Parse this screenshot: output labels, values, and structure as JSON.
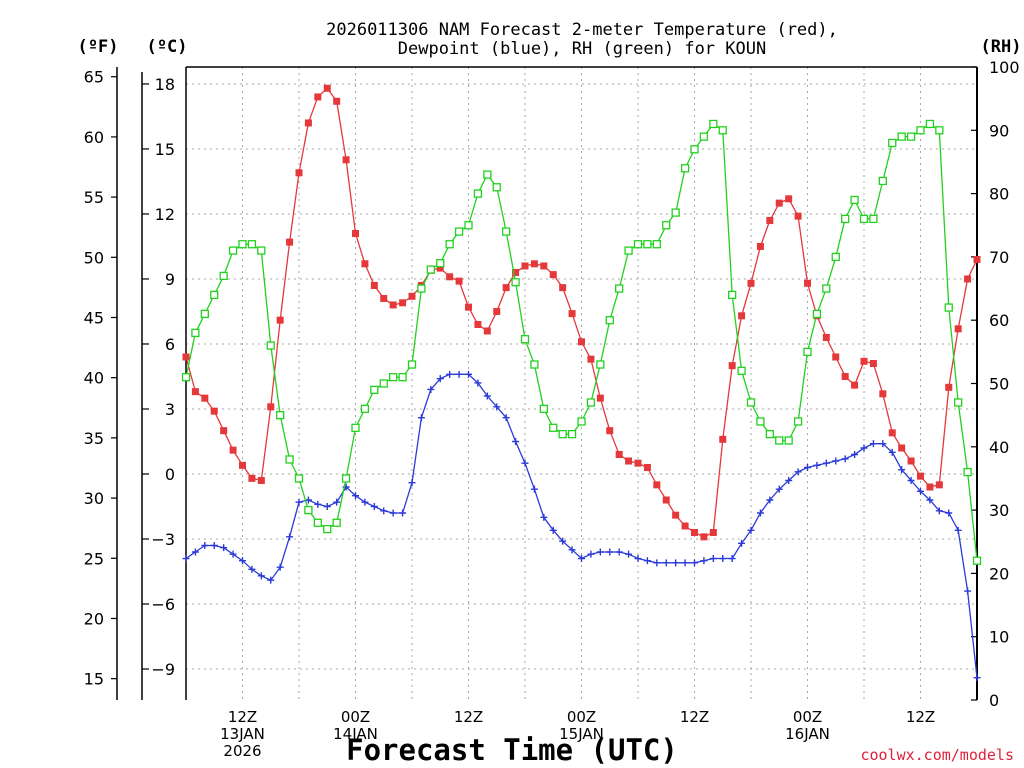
{
  "chart_data": {
    "type": "line",
    "title": [
      "2026011306 NAM Forecast 2-meter Temperature (red),",
      "Dewpoint (blue), RH (green) for KOUN"
    ],
    "xlabel": "Forecast Time (UTC)",
    "y_units": {
      "fahrenheit": "(ºF)",
      "celsius": "(ºC)",
      "rh": "(RH)"
    },
    "y_celsius": {
      "ticks": [
        18,
        15,
        12,
        9,
        6,
        3,
        0,
        -3,
        -6,
        -9
      ],
      "range": [
        -10.3,
        18.8
      ]
    },
    "y_fahrenheit": {
      "ticks": [
        65,
        60,
        55,
        50,
        45,
        40,
        35,
        30,
        25,
        20,
        15
      ]
    },
    "y_rh": {
      "ticks": [
        100,
        90,
        80,
        70,
        60,
        50,
        40,
        30,
        20,
        10,
        0
      ],
      "range": [
        0,
        100
      ]
    },
    "x_range_hours": [
      6,
      90
    ],
    "x_ticks": [
      {
        "hour": 12,
        "lines": [
          "12Z",
          "13JAN",
          "2026"
        ]
      },
      {
        "hour": 24,
        "lines": [
          "00Z",
          "14JAN"
        ]
      },
      {
        "hour": 36,
        "lines": [
          "12Z"
        ]
      },
      {
        "hour": 48,
        "lines": [
          "00Z",
          "15JAN"
        ]
      },
      {
        "hour": 60,
        "lines": [
          "12Z"
        ]
      },
      {
        "hour": 72,
        "lines": [
          "00Z",
          "16JAN"
        ]
      },
      {
        "hour": 84,
        "lines": [
          "12Z"
        ]
      }
    ],
    "grid": true,
    "series": [
      {
        "name": "Temperature",
        "axis": "celsius",
        "color": "#e5383b",
        "marker": "filled-square",
        "x": [
          6,
          7,
          8,
          9,
          10,
          11,
          12,
          13,
          14,
          15,
          16,
          17,
          18,
          19,
          20,
          21,
          22,
          23,
          24,
          25,
          26,
          27,
          28,
          29,
          30,
          31,
          32,
          33,
          34,
          35,
          36,
          37,
          38,
          39,
          40,
          41,
          42,
          43,
          44,
          45,
          46,
          47,
          48,
          49,
          50,
          51,
          52,
          53,
          54,
          55,
          56,
          57,
          58,
          59,
          60,
          61,
          62,
          63,
          64,
          65,
          66,
          67,
          68,
          69,
          70,
          71,
          72,
          73,
          74,
          75,
          76,
          77,
          78,
          79,
          80,
          81,
          82,
          83,
          84,
          85,
          86,
          87,
          88,
          89,
          90
        ],
        "y": [
          5.4,
          3.8,
          3.5,
          2.9,
          2.0,
          1.1,
          0.4,
          -0.2,
          -0.3,
          3.1,
          7.1,
          10.7,
          13.9,
          16.2,
          17.4,
          17.8,
          17.2,
          14.5,
          11.1,
          9.7,
          8.7,
          8.1,
          7.8,
          7.9,
          8.2,
          8.7,
          9.4,
          9.5,
          9.1,
          8.9,
          7.7,
          6.9,
          6.6,
          7.5,
          8.6,
          9.3,
          9.6,
          9.7,
          9.6,
          9.2,
          8.6,
          7.4,
          6.1,
          5.3,
          3.5,
          2.0,
          0.9,
          0.6,
          0.5,
          0.3,
          -0.5,
          -1.2,
          -1.9,
          -2.4,
          -2.7,
          -2.9,
          -2.7,
          1.6,
          5.0,
          7.3,
          8.8,
          10.5,
          11.7,
          12.5,
          12.7,
          11.9,
          8.8,
          7.3,
          6.3,
          5.4,
          4.5,
          4.1,
          5.2,
          5.1,
          3.7,
          1.9,
          1.2,
          0.6,
          -0.1,
          -0.6,
          -0.5,
          4.0,
          6.7,
          9.0,
          9.9
        ]
      },
      {
        "name": "Dewpoint",
        "axis": "celsius",
        "color": "#2a3bd8",
        "marker": "plus",
        "x": [
          6,
          7,
          8,
          9,
          10,
          11,
          12,
          13,
          14,
          15,
          16,
          17,
          18,
          19,
          20,
          21,
          22,
          23,
          24,
          25,
          26,
          27,
          28,
          29,
          30,
          31,
          32,
          33,
          34,
          35,
          36,
          37,
          38,
          39,
          40,
          41,
          42,
          43,
          44,
          45,
          46,
          47,
          48,
          49,
          50,
          51,
          52,
          53,
          54,
          55,
          56,
          57,
          58,
          59,
          60,
          61,
          62,
          63,
          64,
          65,
          66,
          67,
          68,
          69,
          70,
          71,
          72,
          73,
          74,
          75,
          76,
          77,
          78,
          79,
          80,
          81,
          82,
          83,
          84,
          85,
          86,
          87,
          88,
          89,
          90
        ],
        "y": [
          -3.9,
          -3.6,
          -3.3,
          -3.3,
          -3.4,
          -3.7,
          -4.0,
          -4.4,
          -4.7,
          -4.9,
          -4.3,
          -2.9,
          -1.3,
          -1.2,
          -1.4,
          -1.5,
          -1.3,
          -0.6,
          -1.0,
          -1.3,
          -1.5,
          -1.7,
          -1.8,
          -1.8,
          -0.4,
          2.6,
          3.9,
          4.4,
          4.6,
          4.6,
          4.6,
          4.2,
          3.6,
          3.1,
          2.6,
          1.5,
          0.5,
          -0.7,
          -2.0,
          -2.6,
          -3.1,
          -3.5,
          -3.9,
          -3.7,
          -3.6,
          -3.6,
          -3.6,
          -3.7,
          -3.9,
          -4.0,
          -4.1,
          -4.1,
          -4.1,
          -4.1,
          -4.1,
          -4.0,
          -3.9,
          -3.9,
          -3.9,
          -3.2,
          -2.6,
          -1.8,
          -1.2,
          -0.7,
          -0.3,
          0.1,
          0.3,
          0.4,
          0.5,
          0.6,
          0.7,
          0.9,
          1.2,
          1.4,
          1.4,
          1.0,
          0.2,
          -0.3,
          -0.8,
          -1.2,
          -1.7,
          -1.8,
          -2.6,
          -5.4,
          -9.4
        ]
      },
      {
        "name": "RH",
        "axis": "rh",
        "color": "#22d11f",
        "marker": "open-square",
        "x": [
          6,
          7,
          8,
          9,
          10,
          11,
          12,
          13,
          14,
          15,
          16,
          17,
          18,
          19,
          20,
          21,
          22,
          23,
          24,
          25,
          26,
          27,
          28,
          29,
          30,
          31,
          32,
          33,
          34,
          35,
          36,
          37,
          38,
          39,
          40,
          41,
          42,
          43,
          44,
          45,
          46,
          47,
          48,
          49,
          50,
          51,
          52,
          53,
          54,
          55,
          56,
          57,
          58,
          59,
          60,
          61,
          62,
          63,
          64,
          65,
          66,
          67,
          68,
          69,
          70,
          71,
          72,
          73,
          74,
          75,
          76,
          77,
          78,
          79,
          80,
          81,
          82,
          83,
          84,
          85,
          86,
          87,
          88,
          89,
          90
        ],
        "y": [
          51,
          58,
          61,
          64,
          67,
          71,
          72,
          72,
          71,
          56,
          45,
          38,
          35,
          30,
          28,
          27,
          28,
          35,
          43,
          46,
          49,
          50,
          51,
          51,
          53,
          65,
          68,
          69,
          72,
          74,
          75,
          80,
          83,
          81,
          74,
          66,
          57,
          53,
          46,
          43,
          42,
          42,
          44,
          47,
          53,
          60,
          65,
          71,
          72,
          72,
          72,
          75,
          77,
          84,
          87,
          89,
          91,
          90,
          64,
          52,
          47,
          44,
          42,
          41,
          41,
          44,
          55,
          61,
          65,
          70,
          76,
          79,
          76,
          76,
          82,
          88,
          89,
          89,
          90,
          91,
          90,
          62,
          47,
          36,
          22
        ]
      }
    ]
  },
  "footer": {
    "credit": "coolwx.com/models"
  },
  "colors": {
    "temperature": "#e5383b",
    "dewpoint": "#2a3bd8",
    "rh": "#22d11f",
    "grid": "#a8a8a8"
  }
}
